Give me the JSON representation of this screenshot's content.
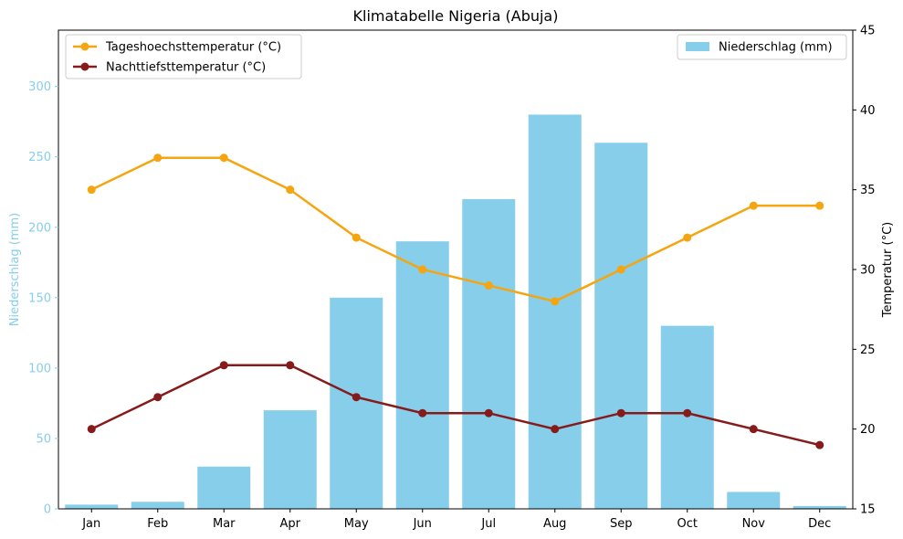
{
  "chart_data": {
    "type": "bar",
    "title": "Klimatabelle Nigeria (Abuja)",
    "categories": [
      "Jan",
      "Feb",
      "Mar",
      "Apr",
      "May",
      "Jun",
      "Jul",
      "Aug",
      "Sep",
      "Oct",
      "Nov",
      "Dec"
    ],
    "bar_series": {
      "name": "Niederschlag (mm)",
      "values": [
        3,
        5,
        30,
        70,
        150,
        190,
        220,
        280,
        260,
        130,
        12,
        2
      ],
      "color": "#87ceeb"
    },
    "line_series": [
      {
        "name": "Tageshoechsttemperatur (°C)",
        "values": [
          35,
          37,
          37,
          35,
          32,
          30,
          29,
          28,
          30,
          32,
          34,
          34
        ],
        "color": "#f5a50f"
      },
      {
        "name": "Nachttiefsttemperatur (°C)",
        "values": [
          20,
          22,
          24,
          24,
          22,
          21,
          21,
          20,
          21,
          21,
          20,
          19
        ],
        "color": "#861b1b"
      }
    ],
    "y_left": {
      "label": "Niederschlag (mm)",
      "lim": [
        0,
        340
      ],
      "ticks": [
        0,
        50,
        100,
        150,
        200,
        250,
        300
      ],
      "color": "#87ceeb"
    },
    "y_right": {
      "label": "Temperatur (°C)",
      "lim": [
        15,
        45
      ],
      "ticks": [
        15,
        20,
        25,
        30,
        35,
        40,
        45
      ]
    },
    "legend_lines_position": "top-left",
    "legend_bars_position": "top-right",
    "grid": false
  }
}
